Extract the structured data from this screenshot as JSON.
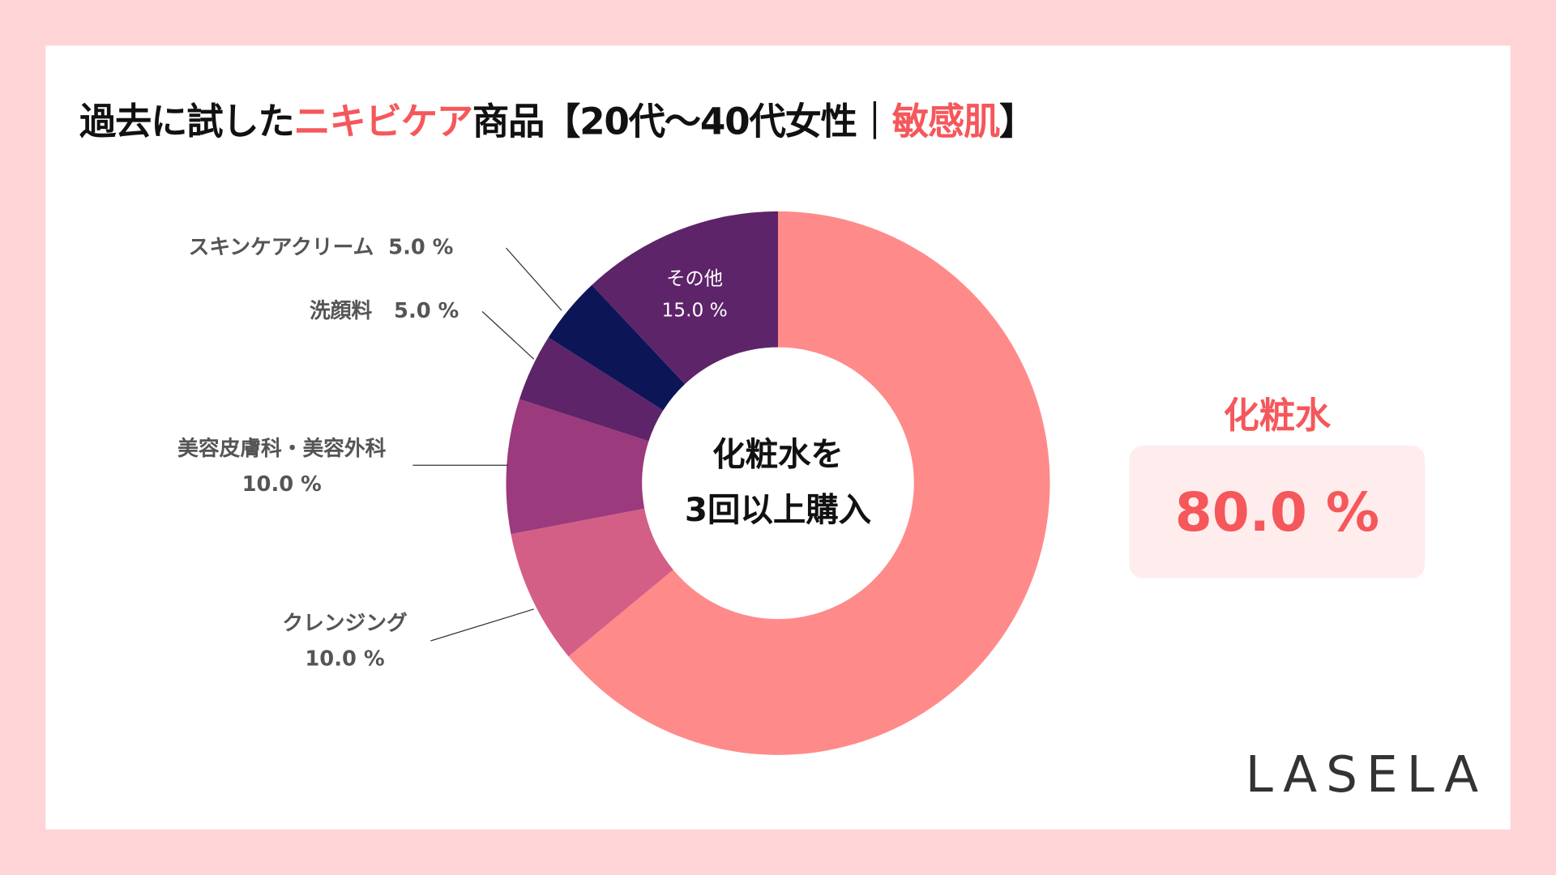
{
  "title": {
    "part1": "過去に試した",
    "part2": "ニキビケア",
    "part3": "商品【20代〜40代女性｜",
    "part4": "敏感肌",
    "part5": "】"
  },
  "center_text": {
    "line1": "化粧水を",
    "line2": "3回以上購入"
  },
  "highlight": {
    "name": "化粧水",
    "value": "80.0 %"
  },
  "logo": "LASELA",
  "chart_data": {
    "type": "pie",
    "donut": true,
    "title": "過去に試したニキビケア商品【20代〜40代女性｜敏感肌】",
    "categories": [
      "化粧水",
      "クレンジング",
      "美容皮膚科・美容外科",
      "洗顔料",
      "スキンケアクリーム",
      "その他"
    ],
    "values": [
      80.0,
      10.0,
      10.0,
      5.0,
      5.0,
      15.0
    ],
    "unit": "%",
    "labels": [
      "",
      "10.0 %",
      "10.0 %",
      "5.0 %",
      "5.0 %",
      "15.0 %"
    ],
    "colors": [
      "#FF8A8A",
      "#D45F86",
      "#9B3A7C",
      "#5E2469",
      "#0C1657",
      "#5E2469"
    ]
  }
}
